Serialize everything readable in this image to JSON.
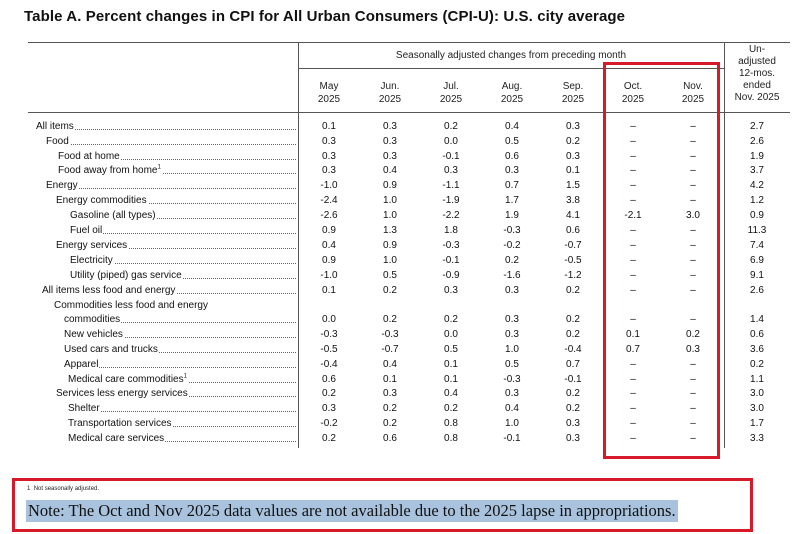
{
  "title": "Table A. Percent changes in CPI for All Urban Consumers (CPI-U): U.S. city average",
  "header": {
    "span_label": "Seasonally adjusted changes from preceding month",
    "columns": [
      {
        "month": "May",
        "year": "2025"
      },
      {
        "month": "Jun.",
        "year": "2025"
      },
      {
        "month": "Jul.",
        "year": "2025"
      },
      {
        "month": "Aug.",
        "year": "2025"
      },
      {
        "month": "Sep.",
        "year": "2025"
      },
      {
        "month": "Oct.",
        "year": "2025"
      },
      {
        "month": "Nov.",
        "year": "2025"
      }
    ],
    "unadjusted": [
      "Un-",
      "adjusted",
      "12-mos.",
      "ended",
      "Nov. 2025"
    ]
  },
  "rows": [
    {
      "label": "All items",
      "values": [
        "0.1",
        "0.3",
        "0.2",
        "0.4",
        "0.3",
        "–",
        "–",
        "2.7"
      ]
    },
    {
      "label": "Food",
      "values": [
        "0.3",
        "0.3",
        "0.0",
        "0.5",
        "0.2",
        "–",
        "–",
        "2.6"
      ]
    },
    {
      "label": "Food at home",
      "values": [
        "0.3",
        "0.3",
        "-0.1",
        "0.6",
        "0.3",
        "–",
        "–",
        "1.9"
      ]
    },
    {
      "label": "Food away from home",
      "sup": "1",
      "values": [
        "0.3",
        "0.4",
        "0.3",
        "0.3",
        "0.1",
        "–",
        "–",
        "3.7"
      ]
    },
    {
      "label": "Energy",
      "values": [
        "-1.0",
        "0.9",
        "-1.1",
        "0.7",
        "1.5",
        "–",
        "–",
        "4.2"
      ]
    },
    {
      "label": "Energy commodities",
      "values": [
        "-2.4",
        "1.0",
        "-1.9",
        "1.7",
        "3.8",
        "–",
        "–",
        "1.2"
      ]
    },
    {
      "label": "Gasoline (all types)",
      "values": [
        "-2.6",
        "1.0",
        "-2.2",
        "1.9",
        "4.1",
        "-2.1",
        "3.0",
        "0.9"
      ]
    },
    {
      "label": "Fuel oil",
      "values": [
        "0.9",
        "1.3",
        "1.8",
        "-0.3",
        "0.6",
        "–",
        "–",
        "11.3"
      ]
    },
    {
      "label": "Energy services",
      "values": [
        "0.4",
        "0.9",
        "-0.3",
        "-0.2",
        "-0.7",
        "–",
        "–",
        "7.4"
      ]
    },
    {
      "label": "Electricity",
      "values": [
        "0.9",
        "1.0",
        "-0.1",
        "0.2",
        "-0.5",
        "–",
        "–",
        "6.9"
      ]
    },
    {
      "label": "Utility (piped) gas service",
      "values": [
        "-1.0",
        "0.5",
        "-0.9",
        "-1.6",
        "-1.2",
        "–",
        "–",
        "9.1"
      ]
    },
    {
      "label": "All items less food and energy",
      "values": [
        "0.1",
        "0.2",
        "0.3",
        "0.3",
        "0.2",
        "–",
        "–",
        "2.6"
      ]
    },
    {
      "label": "Commodities less food and energy",
      "values": []
    },
    {
      "label": "commodities",
      "values": [
        "0.0",
        "0.2",
        "0.2",
        "0.3",
        "0.2",
        "–",
        "–",
        "1.4"
      ]
    },
    {
      "label": "New vehicles",
      "values": [
        "-0.3",
        "-0.3",
        "0.0",
        "0.3",
        "0.2",
        "0.1",
        "0.2",
        "0.6"
      ]
    },
    {
      "label": "Used cars and trucks",
      "values": [
        "-0.5",
        "-0.7",
        "0.5",
        "1.0",
        "-0.4",
        "0.7",
        "0.3",
        "3.6"
      ]
    },
    {
      "label": "Apparel",
      "values": [
        "-0.4",
        "0.4",
        "0.1",
        "0.5",
        "0.7",
        "–",
        "–",
        "0.2"
      ]
    },
    {
      "label": "Medical care commodities",
      "sup": "1",
      "values": [
        "0.6",
        "0.1",
        "0.1",
        "-0.3",
        "-0.1",
        "–",
        "–",
        "1.1"
      ]
    },
    {
      "label": "Services less energy services",
      "values": [
        "0.2",
        "0.3",
        "0.4",
        "0.3",
        "0.2",
        "–",
        "–",
        "3.0"
      ]
    },
    {
      "label": "Shelter",
      "values": [
        "0.3",
        "0.2",
        "0.2",
        "0.4",
        "0.2",
        "–",
        "–",
        "3.0"
      ]
    },
    {
      "label": "Transportation services",
      "values": [
        "-0.2",
        "0.2",
        "0.8",
        "1.0",
        "0.3",
        "–",
        "–",
        "1.7"
      ]
    },
    {
      "label": "Medical care services",
      "values": [
        "0.2",
        "0.6",
        "0.8",
        "-0.1",
        "0.3",
        "–",
        "–",
        "3.3"
      ]
    }
  ],
  "footnote": {
    "marker": "1",
    "text": "Not seasonally adjusted."
  },
  "note": "Note: The Oct and Nov 2025 data values are not available due to the 2025 lapse in appropriations.",
  "colors": {
    "highlight_box": "#d7192a",
    "note_highlight": "#a9c3de"
  }
}
